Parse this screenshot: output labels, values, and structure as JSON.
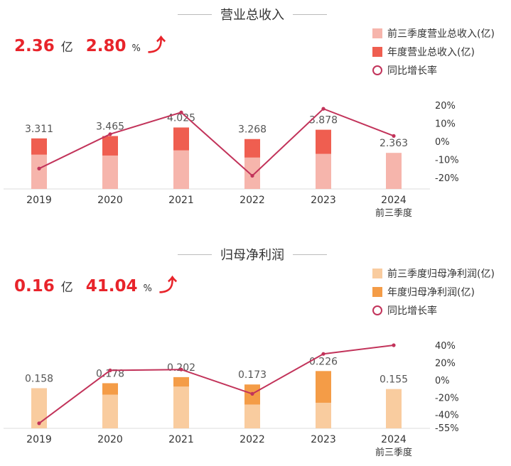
{
  "chart_data": [
    {
      "type": "bar",
      "title": "营业总收入",
      "kpi": {
        "value": "2.36",
        "unit": "亿",
        "growth": "2.80",
        "growth_unit": "%",
        "direction": "up"
      },
      "categories": [
        "2019",
        "2020",
        "2021",
        "2022",
        "2023",
        "2024"
      ],
      "category_sublabels": [
        "",
        "",
        "",
        "",
        "",
        "前三季度"
      ],
      "series": [
        {
          "name": "前三季度营业总收入(亿)",
          "role": "bar-bottom",
          "color": "#f6b5ac",
          "values": [
            2.25,
            2.19,
            2.53,
            2.06,
            2.3,
            2.363
          ]
        },
        {
          "name": "年度营业总收入(亿)",
          "role": "bar-total",
          "color": "#ef5e50",
          "values": [
            3.311,
            3.465,
            4.025,
            3.268,
            3.878,
            null
          ]
        },
        {
          "name": "同比增长率",
          "role": "line",
          "color": "#c2335a",
          "values": [
            -15,
            4,
            16,
            -19,
            18,
            3
          ]
        }
      ],
      "data_labels": [
        "3.311",
        "3.465",
        "4.025",
        "3.268",
        "3.878",
        "2.363"
      ],
      "y_right_ticks": [
        "20%",
        "10%",
        "0%",
        "-10%",
        "-20%"
      ],
      "y_right_range": [
        -20,
        20
      ],
      "legend_position": "top-right",
      "grid": false
    },
    {
      "type": "bar",
      "title": "归母净利润",
      "kpi": {
        "value": "0.16",
        "unit": "亿",
        "growth": "41.04",
        "growth_unit": "%",
        "direction": "up"
      },
      "categories": [
        "2019",
        "2020",
        "2021",
        "2022",
        "2023",
        "2024"
      ],
      "category_sublabels": [
        "",
        "",
        "",
        "",
        "",
        "前三季度"
      ],
      "series": [
        {
          "name": "前三季度归母净利润(亿)",
          "role": "bar-bottom",
          "color": "#f9cc9f",
          "values": [
            0.158,
            0.133,
            0.165,
            0.094,
            0.101,
            0.155
          ]
        },
        {
          "name": "年度归母净利润(亿)",
          "role": "bar-total",
          "color": "#f49c47",
          "values": [
            0.158,
            0.178,
            0.202,
            0.173,
            0.226,
            null
          ]
        },
        {
          "name": "同比增长率",
          "role": "line",
          "color": "#c2335a",
          "values": [
            -50,
            11,
            12,
            -16,
            30,
            40
          ]
        }
      ],
      "data_labels": [
        "0.158",
        "0.178",
        "0.202",
        "0.173",
        "0.226",
        "0.155"
      ],
      "y_right_ticks": [
        "40%",
        "20%",
        "0%",
        "-20%",
        "-40%",
        "-55%"
      ],
      "y_right_range": [
        -55,
        40
      ],
      "legend_position": "top-right",
      "grid": false
    }
  ]
}
